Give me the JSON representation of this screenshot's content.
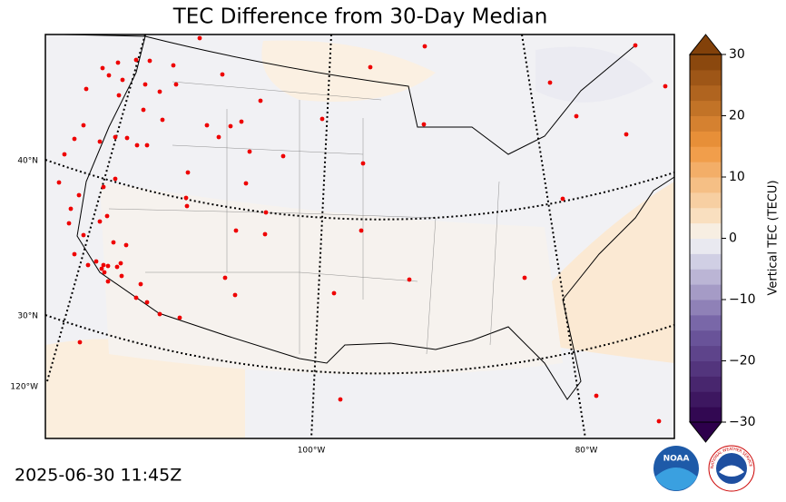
{
  "title": "TEC Difference from 30-Day Median",
  "timestamp": "2025-06-30 11:45Z",
  "map": {
    "graticule_labels": [
      "40°N",
      "30°N",
      "120°W",
      "100°W",
      "80°W"
    ]
  },
  "colorbar": {
    "label": "Vertical TEC (TECU)",
    "lim": [
      -30,
      30
    ],
    "ticks": [
      {
        "value": -30,
        "label": "−30"
      },
      {
        "value": -20,
        "label": "−20"
      },
      {
        "value": -10,
        "label": "−10"
      },
      0,
      10,
      20,
      30
    ]
  },
  "logos": {
    "noaa": "NOAA",
    "nws": "NATIONAL WEATHER SERVICE"
  }
}
